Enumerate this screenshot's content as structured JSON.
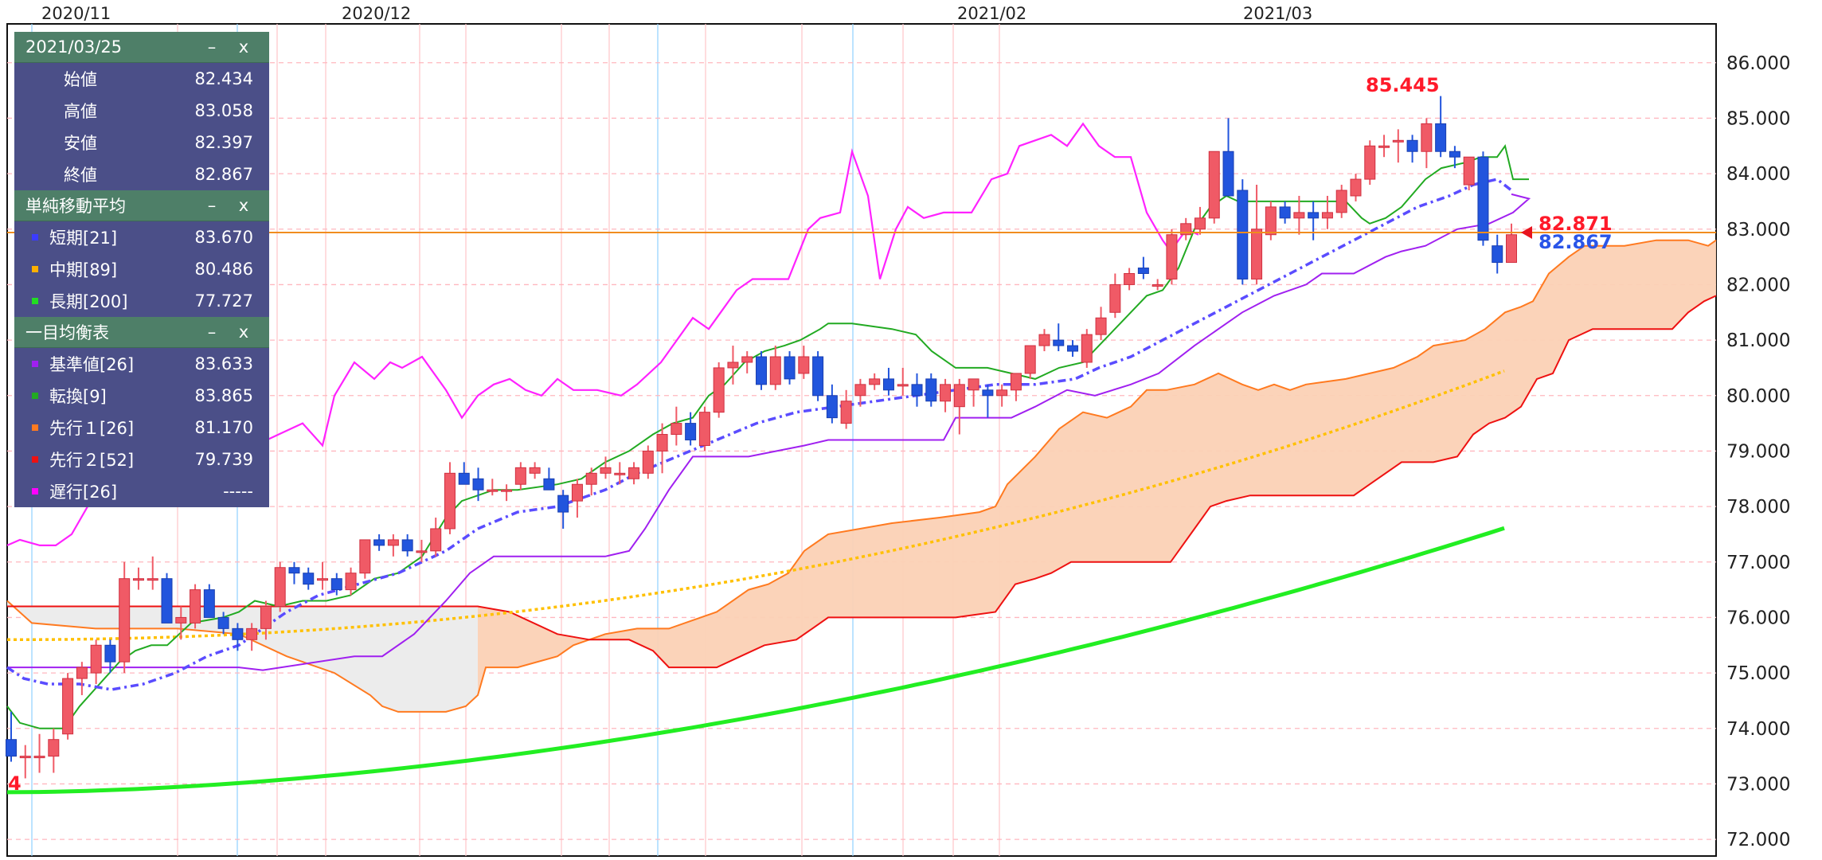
{
  "info_panel": {
    "ohlc": {
      "date": "2021/03/25",
      "rows": [
        {
          "label": "始値",
          "value": "82.434"
        },
        {
          "label": "高値",
          "value": "83.058"
        },
        {
          "label": "安値",
          "value": "82.397"
        },
        {
          "label": "終値",
          "value": "82.867"
        }
      ]
    },
    "sma": {
      "title": "単純移動平均",
      "rows": [
        {
          "label": "短期[21]",
          "value": "83.670",
          "color": "#3b3bff"
        },
        {
          "label": "中期[89]",
          "value": "80.486",
          "color": "#ffb000"
        },
        {
          "label": "長期[200]",
          "value": "77.727",
          "color": "#22dd22"
        }
      ]
    },
    "ichimoku": {
      "title": "一目均衡表",
      "rows": [
        {
          "label": "基準値[26]",
          "value": "83.633",
          "color": "#a020f0"
        },
        {
          "label": "転換[9]",
          "value": "83.865",
          "color": "#22aa22"
        },
        {
          "label": "先行１[26]",
          "value": "81.170",
          "color": "#ff7a20"
        },
        {
          "label": "先行２[52]",
          "value": "79.739",
          "color": "#ee1111"
        },
        {
          "label": "遅行[26]",
          "value": "-----",
          "color": "#ff00ff"
        }
      ]
    },
    "minimize_symbol": "–",
    "close_symbol": "x"
  },
  "chart_data": {
    "type": "candlestick",
    "x_labels": [
      "2020/11",
      "2020/12",
      "2021/02",
      "2021/03"
    ],
    "y_ticks": [
      "72.000",
      "73.000",
      "74.000",
      "75.000",
      "76.000",
      "77.000",
      "78.000",
      "79.000",
      "80.000",
      "81.000",
      "82.000",
      "83.000",
      "84.000",
      "85.000",
      "86.000"
    ],
    "ylim": [
      71.7,
      86.7
    ],
    "high_marker": "85.445",
    "last_close_marker": "82.871",
    "close_marker": "82.867",
    "left_cut_label": "4",
    "up_color": "#f05a66",
    "down_color": "#2255dd",
    "candles": [
      [
        73.8,
        74.3,
        73.4,
        73.5
      ],
      [
        73.5,
        73.7,
        73.1,
        73.5
      ],
      [
        73.5,
        73.9,
        73.2,
        73.5
      ],
      [
        73.5,
        74.0,
        73.2,
        73.8
      ],
      [
        73.9,
        75.0,
        73.8,
        74.9
      ],
      [
        74.9,
        75.2,
        74.6,
        75.1
      ],
      [
        75.0,
        75.6,
        74.8,
        75.5
      ],
      [
        75.5,
        75.6,
        75.0,
        75.2
      ],
      [
        75.2,
        77.0,
        75.0,
        76.7
      ],
      [
        76.7,
        76.9,
        76.5,
        76.7
      ],
      [
        76.7,
        77.1,
        76.5,
        76.7
      ],
      [
        76.7,
        76.8,
        75.9,
        75.9
      ],
      [
        75.9,
        76.2,
        75.6,
        76.0
      ],
      [
        75.9,
        76.6,
        75.8,
        76.5
      ],
      [
        76.5,
        76.6,
        76.0,
        76.0
      ],
      [
        76.0,
        76.1,
        75.7,
        75.8
      ],
      [
        75.8,
        75.9,
        75.4,
        75.6
      ],
      [
        75.6,
        75.9,
        75.4,
        75.8
      ],
      [
        75.8,
        76.3,
        75.6,
        76.2
      ],
      [
        76.2,
        77.0,
        76.1,
        76.9
      ],
      [
        76.9,
        77.0,
        76.6,
        76.8
      ],
      [
        76.8,
        76.9,
        76.5,
        76.6
      ],
      [
        76.7,
        77.0,
        76.5,
        76.7
      ],
      [
        76.7,
        76.8,
        76.4,
        76.5
      ],
      [
        76.5,
        76.9,
        76.4,
        76.8
      ],
      [
        76.8,
        77.4,
        76.7,
        77.4
      ],
      [
        77.4,
        77.5,
        77.2,
        77.3
      ],
      [
        77.3,
        77.5,
        77.1,
        77.4
      ],
      [
        77.4,
        77.5,
        77.1,
        77.2
      ],
      [
        77.2,
        77.4,
        77.0,
        77.2
      ],
      [
        77.2,
        77.8,
        77.1,
        77.6
      ],
      [
        77.6,
        78.8,
        77.5,
        78.6
      ],
      [
        78.6,
        78.8,
        78.4,
        78.4
      ],
      [
        78.5,
        78.7,
        78.1,
        78.3
      ],
      [
        78.3,
        78.5,
        78.2,
        78.3
      ],
      [
        78.3,
        78.4,
        78.1,
        78.3
      ],
      [
        78.4,
        78.8,
        78.3,
        78.7
      ],
      [
        78.6,
        78.8,
        78.5,
        78.7
      ],
      [
        78.5,
        78.7,
        78.3,
        78.3
      ],
      [
        78.2,
        78.3,
        77.6,
        77.9
      ],
      [
        78.1,
        78.5,
        77.8,
        78.4
      ],
      [
        78.4,
        78.7,
        78.2,
        78.6
      ],
      [
        78.6,
        78.9,
        78.5,
        78.7
      ],
      [
        78.6,
        78.8,
        78.4,
        78.6
      ],
      [
        78.5,
        78.8,
        78.4,
        78.7
      ],
      [
        78.6,
        79.1,
        78.5,
        79.0
      ],
      [
        79.0,
        79.5,
        78.6,
        79.3
      ],
      [
        79.3,
        79.8,
        79.1,
        79.5
      ],
      [
        79.5,
        79.7,
        79.1,
        79.2
      ],
      [
        79.1,
        79.8,
        79.0,
        79.7
      ],
      [
        79.7,
        80.6,
        79.6,
        80.5
      ],
      [
        80.5,
        80.9,
        80.2,
        80.6
      ],
      [
        80.6,
        80.8,
        80.4,
        80.7
      ],
      [
        80.7,
        80.8,
        80.1,
        80.2
      ],
      [
        80.2,
        80.9,
        80.1,
        80.7
      ],
      [
        80.7,
        80.8,
        80.2,
        80.3
      ],
      [
        80.4,
        80.9,
        80.3,
        80.7
      ],
      [
        80.7,
        80.8,
        79.9,
        80.0
      ],
      [
        80.0,
        80.2,
        79.5,
        79.6
      ],
      [
        79.5,
        80.1,
        79.4,
        79.9
      ],
      [
        80.0,
        80.3,
        79.8,
        80.2
      ],
      [
        80.2,
        80.4,
        80.1,
        80.3
      ],
      [
        80.3,
        80.5,
        80.0,
        80.1
      ],
      [
        80.2,
        80.5,
        80.0,
        80.2
      ],
      [
        80.2,
        80.4,
        79.8,
        80.0
      ],
      [
        80.3,
        80.4,
        79.8,
        79.9
      ],
      [
        79.9,
        80.3,
        79.7,
        80.2
      ],
      [
        79.8,
        80.3,
        79.3,
        80.2
      ],
      [
        80.1,
        80.3,
        79.8,
        80.3
      ],
      [
        80.1,
        80.2,
        79.6,
        80.0
      ],
      [
        80.0,
        80.2,
        79.8,
        80.1
      ],
      [
        80.1,
        80.4,
        79.9,
        80.4
      ],
      [
        80.4,
        80.9,
        80.3,
        80.9
      ],
      [
        80.9,
        81.2,
        80.8,
        81.1
      ],
      [
        81.0,
        81.3,
        80.8,
        80.9
      ],
      [
        80.9,
        81.0,
        80.7,
        80.8
      ],
      [
        80.6,
        81.2,
        80.5,
        81.1
      ],
      [
        81.1,
        81.6,
        81.0,
        81.4
      ],
      [
        81.5,
        82.2,
        81.4,
        82.0
      ],
      [
        82.0,
        82.3,
        81.9,
        82.2
      ],
      [
        82.3,
        82.5,
        82.1,
        82.2
      ],
      [
        82.0,
        82.1,
        81.9,
        82.0
      ],
      [
        82.1,
        83.0,
        82.0,
        82.9
      ],
      [
        82.9,
        83.2,
        82.8,
        83.1
      ],
      [
        83.0,
        83.4,
        82.9,
        83.2
      ],
      [
        83.2,
        84.4,
        83.1,
        84.4
      ],
      [
        84.4,
        85.0,
        83.6,
        83.6
      ],
      [
        83.7,
        83.9,
        82.0,
        82.1
      ],
      [
        82.1,
        83.8,
        82.0,
        83.0
      ],
      [
        82.9,
        83.5,
        82.8,
        83.4
      ],
      [
        83.4,
        83.5,
        83.1,
        83.2
      ],
      [
        83.2,
        83.6,
        82.9,
        83.3
      ],
      [
        83.3,
        83.5,
        82.8,
        83.2
      ],
      [
        83.2,
        83.6,
        83.0,
        83.3
      ],
      [
        83.3,
        83.8,
        83.2,
        83.7
      ],
      [
        83.6,
        84.0,
        83.5,
        83.9
      ],
      [
        83.9,
        84.6,
        83.8,
        84.5
      ],
      [
        84.5,
        84.7,
        84.3,
        84.5
      ],
      [
        84.6,
        84.8,
        84.2,
        84.6
      ],
      [
        84.6,
        84.7,
        84.2,
        84.4
      ],
      [
        84.4,
        85.0,
        84.1,
        84.9
      ],
      [
        84.9,
        85.4,
        84.3,
        84.4
      ],
      [
        84.4,
        84.5,
        84.1,
        84.3
      ],
      [
        83.8,
        84.3,
        83.7,
        84.3
      ],
      [
        84.3,
        84.4,
        82.7,
        82.8
      ],
      [
        82.7,
        82.9,
        82.2,
        82.4
      ],
      [
        82.4,
        83.1,
        82.4,
        82.9
      ]
    ]
  }
}
